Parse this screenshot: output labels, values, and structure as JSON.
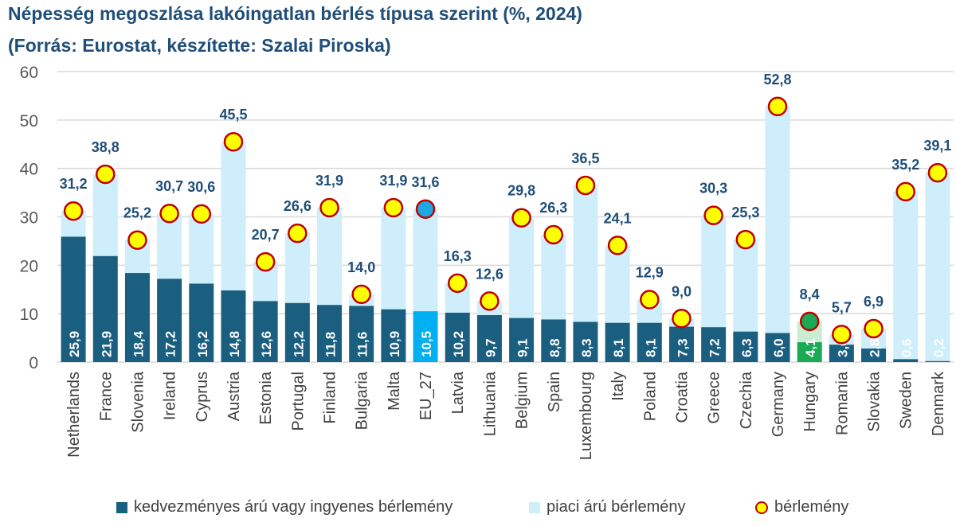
{
  "title_line1": "Népesség megoszlása lakóingatlan bérlés típusa szerint (%, 2024)",
  "title_line2": "(Forrás: Eurostat, készítette: Szalai Piroska)",
  "chart_data": {
    "type": "bar",
    "stacked": true,
    "ylim": [
      0,
      60
    ],
    "yticks": [
      0,
      10,
      20,
      30,
      40,
      50,
      60
    ],
    "grid": true,
    "legend_position": "bottom",
    "categories": [
      "Netherlands",
      "France",
      "Slovenia",
      "Ireland",
      "Cyprus",
      "Austria",
      "Estonia",
      "Portugal",
      "Finland",
      "Bulgaria",
      "Malta",
      "EU_27",
      "Latvia",
      "Lithuania",
      "Belgium",
      "Spain",
      "Luxembourg",
      "Italy",
      "Poland",
      "Croatia",
      "Greece",
      "Czechia",
      "Germany",
      "Hungary",
      "Romania",
      "Slovakia",
      "Sweden",
      "Denmark"
    ],
    "series": [
      {
        "name": "kedvezményes árú vagy ingyenes bérlemény",
        "color": "#1a5f80",
        "values": [
          25.9,
          21.9,
          18.4,
          17.2,
          16.2,
          14.8,
          12.6,
          12.2,
          11.8,
          11.6,
          10.9,
          10.5,
          10.2,
          9.7,
          9.1,
          8.8,
          8.3,
          8.1,
          8.1,
          7.3,
          7.2,
          6.3,
          6.0,
          4.1,
          3.6,
          2.8,
          0.6,
          0.2
        ]
      },
      {
        "name": "piaci árú bérlemény",
        "color": "#cdeefa"
      },
      {
        "name": "bérlemény",
        "color": "#ffff00",
        "marker": "circle",
        "values": [
          31.2,
          38.8,
          25.2,
          30.7,
          30.6,
          45.5,
          20.7,
          26.6,
          31.9,
          14.0,
          31.9,
          31.6,
          16.3,
          12.6,
          29.8,
          26.3,
          36.5,
          24.1,
          12.9,
          9.0,
          30.3,
          25.3,
          52.8,
          8.4,
          5.7,
          6.9,
          35.2,
          39.1
        ]
      }
    ],
    "highlight": {
      "EU_27": "#00b0f0",
      "Hungary": "#1aaa55"
    },
    "label_decimal_separator": ","
  }
}
